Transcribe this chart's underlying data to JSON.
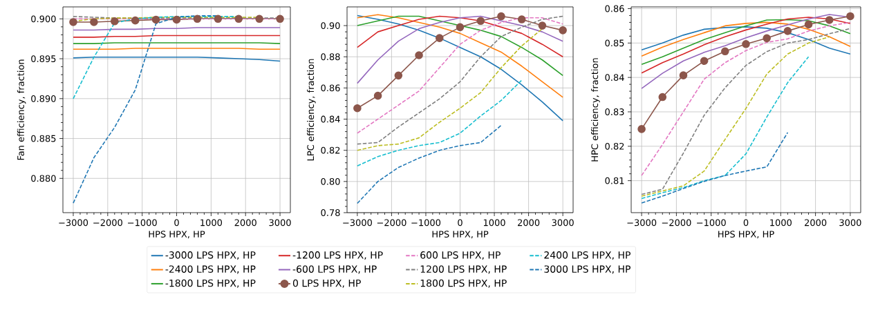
{
  "chart_data": [
    {
      "type": "line",
      "xlabel": "HPS HPX, HP",
      "ylabel": "Fan efficiency, fraction",
      "grid": true,
      "legend": false,
      "x": [
        -3000,
        -2400,
        -1800,
        -1200,
        -600,
        0,
        600,
        1200,
        1800,
        2400,
        3000
      ],
      "xlim": [
        -3300,
        3300
      ],
      "ylim": [
        0.8757,
        0.9015
      ],
      "xticks": [
        {
          "value": -3000,
          "label": "−3000"
        },
        {
          "value": -2000,
          "label": "−2000"
        },
        {
          "value": -1000,
          "label": "−1000"
        },
        0,
        1000,
        2000,
        3000
      ],
      "yticks": [
        {
          "value": 0.88,
          "label": "0.880"
        },
        {
          "value": 0.885,
          "label": "0.885"
        },
        {
          "value": 0.89,
          "label": "0.890"
        },
        {
          "value": 0.895,
          "label": "0.895"
        },
        {
          "value": 0.9,
          "label": "0.900"
        }
      ],
      "series": [
        {
          "color": "#1f77b4",
          "line_style": "solid",
          "values": [
            0.8951,
            0.8952,
            0.8952,
            0.8952,
            0.8952,
            0.8952,
            0.8952,
            0.8951,
            0.895,
            0.8949,
            0.8947
          ]
        },
        {
          "color": "#ff7f0e",
          "line_style": "solid",
          "values": [
            0.8962,
            0.8962,
            0.8962,
            0.8963,
            0.8963,
            0.8963,
            0.8963,
            0.8963,
            0.8963,
            0.8962,
            0.8962
          ]
        },
        {
          "color": "#2ca02c",
          "line_style": "solid",
          "values": [
            0.8969,
            0.8969,
            0.897,
            0.897,
            0.897,
            0.897,
            0.897,
            0.897,
            0.897,
            0.897,
            0.8969
          ]
        },
        {
          "color": "#d62728",
          "line_style": "solid",
          "values": [
            0.8977,
            0.8977,
            0.8978,
            0.8978,
            0.8979,
            0.8979,
            0.8979,
            0.8979,
            0.8979,
            0.8979,
            0.8979
          ]
        },
        {
          "color": "#9467bd",
          "line_style": "solid",
          "values": [
            0.8986,
            0.8986,
            0.8987,
            0.8987,
            0.8988,
            0.8988,
            0.8989,
            0.8989,
            0.8989,
            0.8989,
            0.8989
          ]
        },
        {
          "color": "#8c564b",
          "line_style": "solid",
          "marker": "circle",
          "values": [
            0.8996,
            0.8996,
            0.8997,
            0.8998,
            0.8999,
            0.8999,
            0.9,
            0.9,
            0.9,
            0.9,
            0.9
          ]
        },
        {
          "color": "#e377c2",
          "line_style": "dashed",
          "values": [
            0.9,
            0.9,
            0.9,
            0.9,
            0.9,
            0.9,
            0.9,
            0.9,
            0.9,
            0.9,
            0.9
          ]
        },
        {
          "color": "#7f7f7f",
          "line_style": "dashed",
          "values": [
            0.9003,
            0.9002,
            0.9001,
            0.9001,
            0.9001,
            0.9001,
            0.9001,
            0.9001,
            0.9001,
            0.9001,
            0.9001
          ]
        },
        {
          "color": "#bcbd22",
          "line_style": "dashed",
          "values": [
            0.8997,
            0.9,
            0.9001,
            0.9001,
            0.9002,
            0.9002,
            0.9002,
            0.9002,
            0.9002,
            0.9002,
            null
          ]
        },
        {
          "color": "#17becf",
          "line_style": "dashed",
          "values": [
            0.89,
            0.8952,
            0.8995,
            0.9,
            0.9002,
            0.9003,
            0.9003,
            0.9003,
            0.9003,
            null,
            null
          ]
        },
        {
          "color": "#1f77b4",
          "line_style": "dashed",
          "values": [
            0.8769,
            0.8826,
            0.8864,
            0.8911,
            0.8994,
            0.9002,
            0.9004,
            0.9004,
            null,
            null,
            null
          ]
        }
      ]
    },
    {
      "type": "line",
      "xlabel": "HPS HPX, HP",
      "ylabel": "LPC efficiency, fraction",
      "grid": true,
      "legend": "bottom",
      "x": [
        -3000,
        -2400,
        -1800,
        -1200,
        -600,
        0,
        600,
        1200,
        1800,
        2400,
        3000
      ],
      "xlim": [
        -3300,
        3300
      ],
      "ylim": [
        0.78,
        0.912
      ],
      "xticks": [
        {
          "value": -3000,
          "label": "−3000"
        },
        {
          "value": -2000,
          "label": "−2000"
        },
        {
          "value": -1000,
          "label": "−1000"
        },
        0,
        1000,
        2000,
        3000
      ],
      "yticks": [
        0.78,
        {
          "value": 0.8,
          "label": "0.80"
        },
        0.82,
        0.84,
        0.86,
        0.88,
        {
          "value": 0.9,
          "label": "0.90"
        }
      ],
      "series": [
        {
          "name": "-3000 LPS HPX, HP",
          "color": "#1f77b4",
          "line_style": "solid",
          "values": [
            0.9065,
            0.904,
            0.901,
            0.897,
            0.892,
            0.886,
            0.88,
            0.872,
            0.862,
            0.851,
            0.839
          ]
        },
        {
          "name": "-2400 LPS HPX, HP",
          "color": "#ff7f0e",
          "line_style": "solid",
          "values": [
            0.905,
            0.907,
            0.905,
            0.902,
            0.899,
            0.895,
            0.889,
            0.883,
            0.874,
            0.864,
            0.854
          ]
        },
        {
          "name": "-1800 LPS HPX, HP",
          "color": "#2ca02c",
          "line_style": "solid",
          "values": [
            0.9,
            0.903,
            0.906,
            0.906,
            0.903,
            0.9,
            0.897,
            0.893,
            0.886,
            0.878,
            0.868
          ]
        },
        {
          "name": "-1200 LPS HPX, HP",
          "color": "#d62728",
          "line_style": "solid",
          "values": [
            0.886,
            0.896,
            0.9,
            0.904,
            0.906,
            0.905,
            0.903,
            0.899,
            0.895,
            0.888,
            0.88
          ]
        },
        {
          "name": "-600 LPS HPX, HP",
          "color": "#9467bd",
          "line_style": "solid",
          "values": [
            0.863,
            0.878,
            0.89,
            0.898,
            0.902,
            0.905,
            0.906,
            0.903,
            0.9,
            0.896,
            0.89
          ]
        },
        {
          "name": "0 LPS HPX, HP",
          "color": "#8c564b",
          "line_style": "solid",
          "marker": "circle",
          "values": [
            0.847,
            0.855,
            0.868,
            0.881,
            0.892,
            0.899,
            0.903,
            0.906,
            0.904,
            0.9,
            0.897
          ]
        },
        {
          "name": "600 LPS HPX, HP",
          "color": "#e377c2",
          "line_style": "dashed",
          "values": [
            0.831,
            0.84,
            0.849,
            0.858,
            0.873,
            0.888,
            0.897,
            0.902,
            0.905,
            0.905,
            0.901
          ]
        },
        {
          "name": "1200 LPS HPX, HP",
          "color": "#7f7f7f",
          "line_style": "dashed",
          "values": [
            0.824,
            0.825,
            0.835,
            0.844,
            0.853,
            0.864,
            0.88,
            0.893,
            0.899,
            0.904,
            0.906
          ]
        },
        {
          "name": "1800 LPS HPX, HP",
          "color": "#bcbd22",
          "line_style": "dashed",
          "values": [
            0.82,
            0.823,
            0.824,
            0.828,
            0.838,
            0.847,
            0.857,
            0.873,
            0.887,
            0.898,
            null
          ]
        },
        {
          "name": "2400 LPS HPX, HP",
          "color": "#17becf",
          "line_style": "dashed",
          "values": [
            0.81,
            0.816,
            0.82,
            0.823,
            0.825,
            0.831,
            0.842,
            0.852,
            0.865,
            null,
            null
          ]
        },
        {
          "name": "3000 LPS HPX, HP",
          "color": "#1f77b4",
          "line_style": "dashed",
          "values": [
            0.786,
            0.8,
            0.809,
            0.815,
            0.82,
            0.823,
            0.825,
            0.836,
            null,
            null,
            null
          ]
        }
      ]
    },
    {
      "type": "line",
      "xlabel": "HPS HPX, HP",
      "ylabel": "HPC efficiency, fraction",
      "grid": true,
      "legend": false,
      "x": [
        -3000,
        -2400,
        -1800,
        -1200,
        -600,
        0,
        600,
        1200,
        1800,
        2400,
        3000
      ],
      "xlim": [
        -3300,
        3300
      ],
      "ylim": [
        0.8007,
        0.8605
      ],
      "xticks": [
        {
          "value": -3000,
          "label": "−3000"
        },
        {
          "value": -2000,
          "label": "−2000"
        },
        {
          "value": -1000,
          "label": "−1000"
        },
        0,
        1000,
        2000,
        3000
      ],
      "yticks": [
        0.81,
        0.82,
        0.83,
        0.84,
        0.85,
        0.86
      ],
      "series": [
        {
          "color": "#1f77b4",
          "line_style": "solid",
          "values": [
            0.848,
            0.85,
            0.8523,
            0.854,
            0.8545,
            0.8547,
            0.8543,
            0.853,
            0.851,
            0.8485,
            0.8468
          ]
        },
        {
          "color": "#ff7f0e",
          "line_style": "solid",
          "values": [
            0.8462,
            0.8488,
            0.851,
            0.853,
            0.855,
            0.8557,
            0.856,
            0.8555,
            0.854,
            0.8518,
            0.849
          ]
        },
        {
          "color": "#2ca02c",
          "line_style": "solid",
          "values": [
            0.8438,
            0.846,
            0.8485,
            0.851,
            0.853,
            0.855,
            0.8567,
            0.8568,
            0.8565,
            0.855,
            0.8527
          ]
        },
        {
          "color": "#d62728",
          "line_style": "solid",
          "values": [
            0.8413,
            0.8443,
            0.8468,
            0.8495,
            0.8518,
            0.8538,
            0.8555,
            0.857,
            0.8575,
            0.857,
            0.8557
          ]
        },
        {
          "color": "#9467bd",
          "line_style": "solid",
          "values": [
            0.8368,
            0.8412,
            0.8448,
            0.8473,
            0.8492,
            0.8515,
            0.8535,
            0.8553,
            0.857,
            0.8583,
            0.8575
          ]
        },
        {
          "color": "#8c564b",
          "line_style": "solid",
          "marker": "circle",
          "values": [
            0.825,
            0.8343,
            0.8406,
            0.8448,
            0.8476,
            0.8497,
            0.8514,
            0.8535,
            0.8554,
            0.8567,
            0.8578
          ]
        },
        {
          "color": "#e377c2",
          "line_style": "dashed",
          "values": [
            0.8115,
            0.8205,
            0.83,
            0.8395,
            0.8443,
            0.8478,
            0.8502,
            0.8512,
            0.8535,
            0.855,
            0.856
          ]
        },
        {
          "color": "#7f7f7f",
          "line_style": "dashed",
          "values": [
            0.806,
            0.8075,
            0.818,
            0.829,
            0.837,
            0.8435,
            0.8475,
            0.85,
            0.851,
            0.8527,
            0.8542
          ]
        },
        {
          "color": "#bcbd22",
          "line_style": "dashed",
          "values": [
            0.8055,
            0.807,
            0.8085,
            0.8128,
            0.822,
            0.831,
            0.841,
            0.8468,
            0.85,
            0.8518,
            null
          ]
        },
        {
          "color": "#17becf",
          "line_style": "dashed",
          "values": [
            0.8048,
            0.8065,
            0.808,
            0.81,
            0.8115,
            0.8178,
            0.8285,
            0.8385,
            0.846,
            null,
            null
          ]
        },
        {
          "color": "#1f77b4",
          "line_style": "dashed",
          "values": [
            0.8035,
            0.8055,
            0.8077,
            0.8098,
            0.8115,
            0.8128,
            0.814,
            0.824,
            null,
            null,
            null
          ]
        }
      ]
    }
  ]
}
